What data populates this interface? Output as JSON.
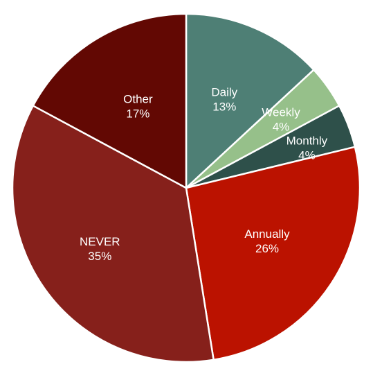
{
  "chart_data": {
    "type": "pie",
    "title": "",
    "start_angle_deg": 0,
    "direction": "clockwise",
    "slices": [
      {
        "label": "Daily",
        "value": 13,
        "percent_label": "13%",
        "color": "#4e7f75"
      },
      {
        "label": "Weekly",
        "value": 4,
        "percent_label": "4%",
        "color": "#96c08a"
      },
      {
        "label": "Monthly",
        "value": 4,
        "percent_label": "4%",
        "color": "#2e504a"
      },
      {
        "label": "Annually",
        "value": 26,
        "percent_label": "26%",
        "color": "#bb1200"
      },
      {
        "label": "NEVER",
        "value": 35,
        "percent_label": "35%",
        "color": "#86201b"
      },
      {
        "label": "Other",
        "value": 17,
        "percent_label": "17%",
        "color": "#620803"
      }
    ],
    "legend": "none"
  }
}
